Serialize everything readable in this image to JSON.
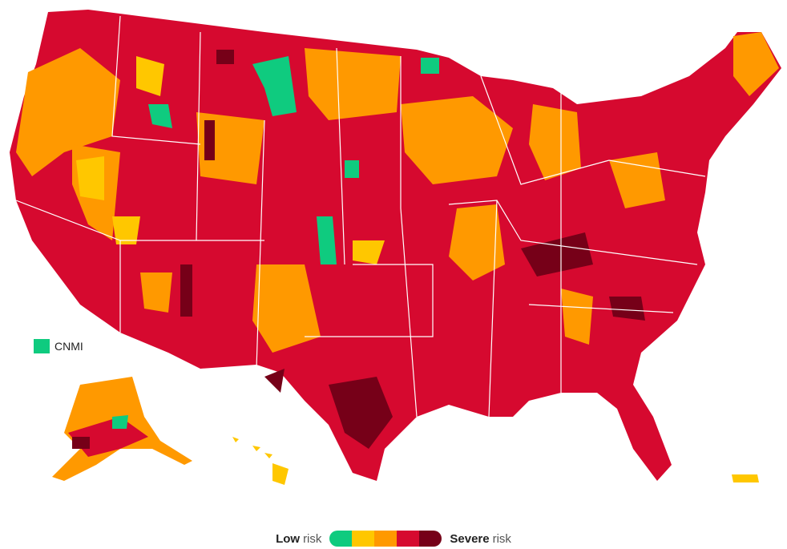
{
  "map": {
    "cnmi_label": "CNMI"
  },
  "legend": {
    "low": "Low",
    "low_suffix": "risk",
    "severe": "Severe",
    "severe_suffix": "risk",
    "colors": [
      "#0fcb7f",
      "#ffc700",
      "#ff9900",
      "#d6092f",
      "#760018"
    ]
  }
}
